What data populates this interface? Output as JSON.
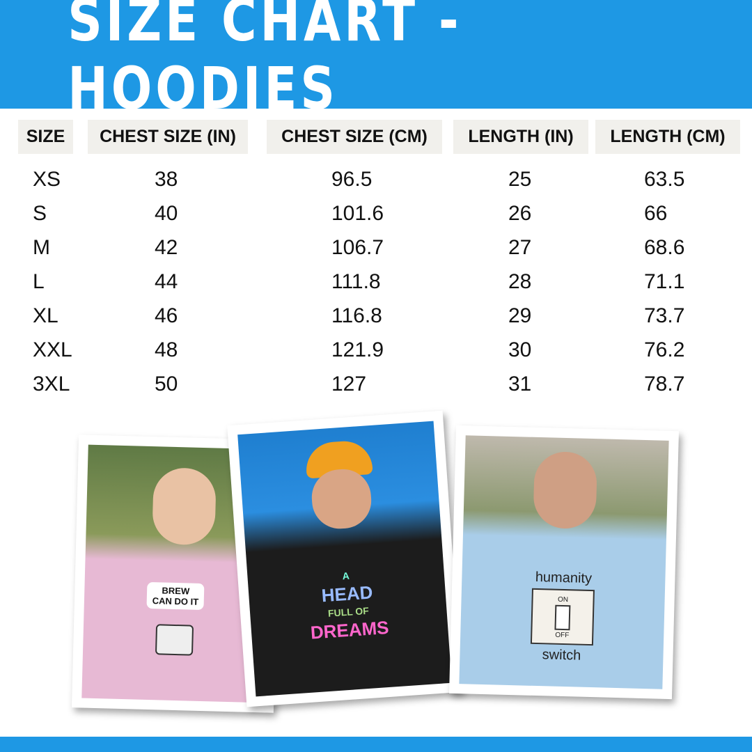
{
  "title": "SIZE CHART - HOODIES",
  "colors": {
    "brand_blue": "#1e98e4",
    "header_cell_bg": "#f1f0ec"
  },
  "table": {
    "headers": [
      "SIZE",
      "CHEST SIZE (IN)",
      "CHEST SIZE (CM)",
      "LENGTH (IN)",
      "LENGTH (CM)"
    ],
    "rows": [
      [
        "XS",
        "38",
        "96.5",
        "25",
        "63.5"
      ],
      [
        "S",
        "40",
        "101.6",
        "26",
        "66"
      ],
      [
        "M",
        "42",
        "106.7",
        "27",
        "68.6"
      ],
      [
        "L",
        "44",
        "111.8",
        "28",
        "71.1"
      ],
      [
        "XL",
        "46",
        "116.8",
        "29",
        "73.7"
      ],
      [
        "XXL",
        "48",
        "121.9",
        "30",
        "76.2"
      ],
      [
        "3XL",
        "50",
        "127",
        "31",
        "78.7"
      ]
    ]
  },
  "photos": [
    {
      "hoodie_color": "#e7b9d4",
      "print_text": [
        "BREW",
        "CAN DO IT"
      ]
    },
    {
      "hoodie_color": "#1c1c1c",
      "print_text": [
        "A",
        "HEAD",
        "FULL OF",
        "DREAMS"
      ]
    },
    {
      "hoodie_color": "#a9cde9",
      "print_text": [
        "humanity",
        "ON",
        "OFF",
        "switch"
      ]
    }
  ]
}
